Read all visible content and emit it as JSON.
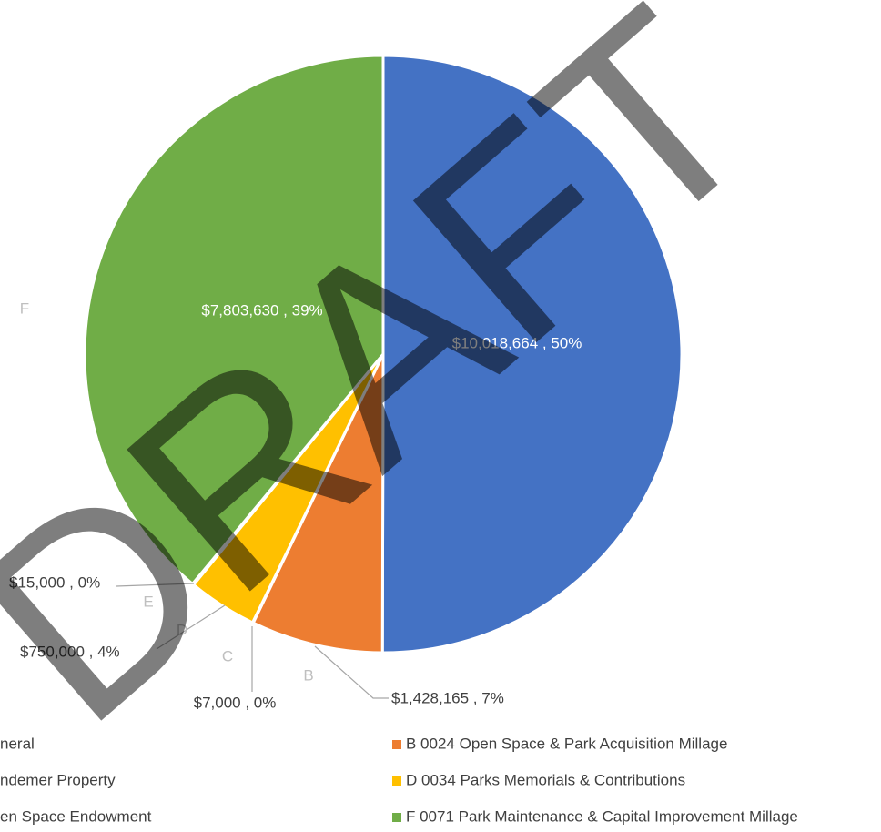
{
  "chart_data": {
    "type": "pie",
    "categories": [
      null,
      "B",
      "C",
      "D",
      "E",
      "F"
    ],
    "values": [
      10018664,
      1428165,
      7000,
      750000,
      15000,
      7803630
    ],
    "value_labels": [
      "$10,018,664 , 50%",
      "$1,428,165 , 7%",
      "$7,000 , 0%",
      "$750,000 , 4%",
      "$15,000 , 0%",
      "$7,803,630 , 39%"
    ],
    "colors": [
      "#4472c4",
      "#ed7d31",
      "#a5a5a5",
      "#ffc000",
      "#5b9bd5",
      "#70ad47"
    ],
    "legend": [
      "neral",
      "B 0024 Open Space & Park Acquisition Millage",
      "ndemer Property",
      "D 0034 Parks Memorials & Contributions",
      "en Space Endowment",
      "F 0071 Park Maintenance & Capital Improvement Millage"
    ],
    "watermark": "DRAFT"
  }
}
